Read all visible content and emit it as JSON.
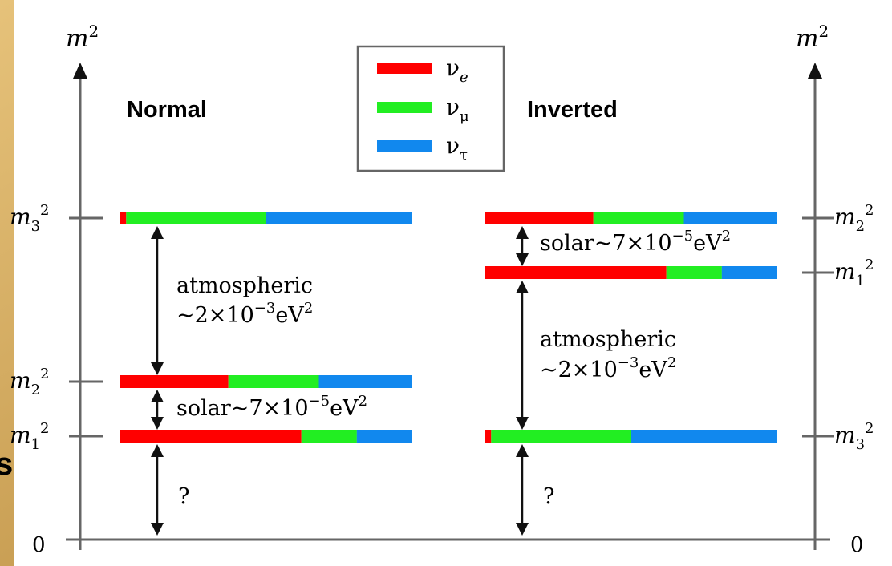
{
  "axis": {
    "y_label": "m",
    "y_label_sup": "2",
    "zero": "0"
  },
  "ordering": {
    "normal": "Normal",
    "inverted": "Inverted"
  },
  "legend": [
    {
      "symbol": "ν",
      "sub": "e",
      "color": "#ff0000"
    },
    {
      "symbol": "ν",
      "sub": "μ",
      "color": "#22ee22"
    },
    {
      "symbol": "ν",
      "sub": "τ",
      "color": "#1188ee"
    }
  ],
  "normal": {
    "levels": [
      {
        "label": "m",
        "sub": "3",
        "sup": "2",
        "fractions": {
          "e": 0.02,
          "mu": 0.48,
          "tau": 0.5
        }
      },
      {
        "label": "m",
        "sub": "2",
        "sup": "2",
        "fractions": {
          "e": 0.37,
          "mu": 0.31,
          "tau": 0.32
        }
      },
      {
        "label": "m",
        "sub": "1",
        "sup": "2",
        "fractions": {
          "e": 0.62,
          "mu": 0.19,
          "tau": 0.19
        }
      }
    ],
    "atmospheric_label": "atmospheric",
    "atmospheric_value": "~2×10",
    "atmospheric_exp": "−3",
    "atmospheric_unit": "eV",
    "atmospheric_unit_sup": "2",
    "solar_label": "solar~7×10",
    "solar_exp": "−5",
    "solar_unit": "eV",
    "solar_unit_sup": "2",
    "question": "?"
  },
  "inverted": {
    "levels": [
      {
        "label": "m",
        "sub": "2",
        "sup": "2",
        "fractions": {
          "e": 0.37,
          "mu": 0.31,
          "tau": 0.32
        }
      },
      {
        "label": "m",
        "sub": "1",
        "sup": "2",
        "fractions": {
          "e": 0.62,
          "mu": 0.19,
          "tau": 0.19
        }
      },
      {
        "label": "m",
        "sub": "3",
        "sup": "2",
        "fractions": {
          "e": 0.02,
          "mu": 0.48,
          "tau": 0.5
        }
      }
    ],
    "atmospheric_label": "atmospheric",
    "atmospheric_value": "~2×10",
    "atmospheric_exp": "−3",
    "atmospheric_unit": "eV",
    "atmospheric_unit_sup": "2",
    "solar_label": "solar~7×10",
    "solar_exp": "−5",
    "solar_unit": "eV",
    "solar_unit_sup": "2",
    "question": "?"
  },
  "side_fragment": "s",
  "colors": {
    "nu_e": "#ff0000",
    "nu_mu": "#22ee22",
    "nu_tau": "#1188ee",
    "axis": "#666666",
    "arrow": "#111111",
    "frame": "#d8b568"
  }
}
